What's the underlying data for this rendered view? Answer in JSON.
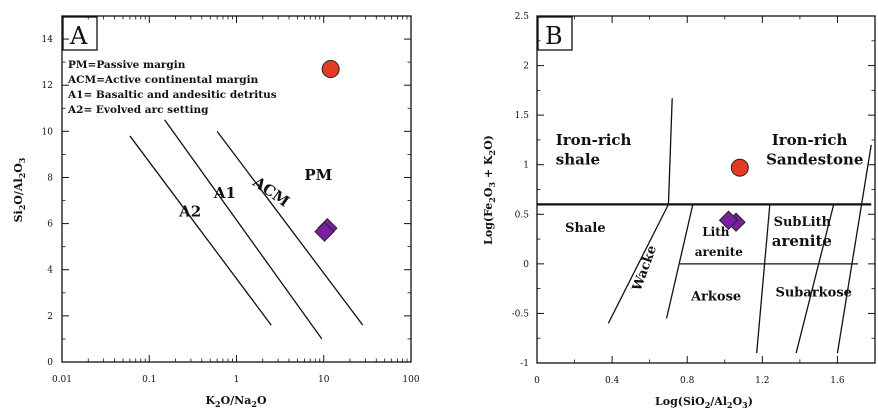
{
  "chart_data": [
    {
      "type": "scatter",
      "panel": "A",
      "xscale": "log",
      "xlim": [
        0.01,
        100
      ],
      "ylim": [
        0,
        15
      ],
      "xlabel": "K2O/Na2O",
      "ylabel": "Si2O/Al2O3",
      "xticks": [
        "0.01",
        "0.1",
        "1",
        "10",
        "100"
      ],
      "yticks": [
        "0",
        "2",
        "4",
        "6",
        "8",
        "10",
        "12",
        "14"
      ],
      "legend": [
        "PM=Passive margin",
        "ACM=Active continental margin",
        "A1= Basaltic and andesitic detritus",
        "A2= Evolved arc setting"
      ],
      "boundaries": [
        {
          "x": [
            0.06,
            2.5
          ],
          "y": [
            9.8,
            1.6
          ]
        },
        {
          "x": [
            0.15,
            9.5
          ],
          "y": [
            10.5,
            1.0
          ]
        },
        {
          "x": [
            0.6,
            28
          ],
          "y": [
            10.0,
            1.6
          ]
        }
      ],
      "field_labels": [
        {
          "text": "A2",
          "x": 0.22,
          "y": 6.3
        },
        {
          "text": "A1",
          "x": 0.55,
          "y": 7.1
        },
        {
          "text": "ACM",
          "x": 1.5,
          "y": 7.7
        },
        {
          "text": "PM",
          "x": 6.0,
          "y": 7.9
        }
      ],
      "points": [
        {
          "x": 12,
          "y": 12.7,
          "marker": "circle",
          "color": "#e53b24"
        },
        {
          "x": 11,
          "y": 5.8,
          "marker": "diamond",
          "color": "#7b1fa2"
        },
        {
          "x": 10.2,
          "y": 5.65,
          "marker": "diamond",
          "color": "#7b1fa2"
        }
      ]
    },
    {
      "type": "scatter",
      "panel": "B",
      "xlim": [
        0,
        1.8
      ],
      "ylim": [
        -1,
        2.5
      ],
      "xlabel": "Log(SiO2/Al2O3)",
      "ylabel": "Log(Fe2O3 + K2O)",
      "xticks": [
        "0",
        "0.4",
        "0.8",
        "1.2",
        "1.6"
      ],
      "yticks": [
        "-1",
        "-0.5",
        "0",
        "0.5",
        "1",
        "1.5",
        "2",
        "2.5"
      ],
      "boundaries": [
        {
          "x": [
            0,
            1.78
          ],
          "y": [
            0.6,
            0.6
          ],
          "thick": true
        },
        {
          "x": [
            0.7,
            0.72
          ],
          "y": [
            0.6,
            1.67
          ]
        },
        {
          "x": [
            0.7,
            0.38
          ],
          "y": [
            0.6,
            -0.6
          ]
        },
        {
          "x": [
            0.83,
            0.69
          ],
          "y": [
            0.6,
            -0.55
          ]
        },
        {
          "x": [
            1.24,
            1.17
          ],
          "y": [
            0.6,
            -0.9
          ]
        },
        {
          "x": [
            1.58,
            1.38
          ],
          "y": [
            0.6,
            -0.9
          ]
        },
        {
          "x": [
            1.78,
            1.6
          ],
          "y": [
            1.2,
            -0.9
          ]
        },
        {
          "x": [
            0.76,
            1.71
          ],
          "y": [
            0.0,
            0.0
          ]
        }
      ],
      "field_labels": [
        {
          "text": "Iron-rich",
          "x": 0.1,
          "y": 1.2,
          "size": "lg"
        },
        {
          "text": "shale",
          "x": 0.1,
          "y": 1.0,
          "size": "lg"
        },
        {
          "text": "Iron-rich",
          "x": 1.25,
          "y": 1.2,
          "size": "lg"
        },
        {
          "text": "Sandestone",
          "x": 1.22,
          "y": 1.0,
          "size": "lg"
        },
        {
          "text": "Shale",
          "x": 0.15,
          "y": 0.32,
          "size": "md"
        },
        {
          "text": "Lith",
          "x": 0.88,
          "y": 0.28,
          "size": "sm"
        },
        {
          "text": "arenite",
          "x": 0.84,
          "y": 0.08,
          "size": "sm"
        },
        {
          "text": "SubLith",
          "x": 1.26,
          "y": 0.38,
          "size": "md"
        },
        {
          "text": "arenite",
          "x": 1.25,
          "y": 0.18,
          "size": "lg"
        },
        {
          "text": "Arkose",
          "x": 0.82,
          "y": -0.37,
          "size": "md"
        },
        {
          "text": "Subarkose",
          "x": 1.27,
          "y": -0.33,
          "size": "md"
        },
        {
          "text": "Wacke",
          "x": 0.55,
          "y": -0.28,
          "size": "md",
          "rotate": -70
        }
      ],
      "points": [
        {
          "x": 1.08,
          "y": 0.97,
          "marker": "circle",
          "color": "#e53b24"
        },
        {
          "x": 1.06,
          "y": 0.42,
          "marker": "diamond",
          "color": "#7b1fa2"
        },
        {
          "x": 1.02,
          "y": 0.44,
          "marker": "diamond",
          "color": "#7b1fa2"
        }
      ]
    }
  ]
}
